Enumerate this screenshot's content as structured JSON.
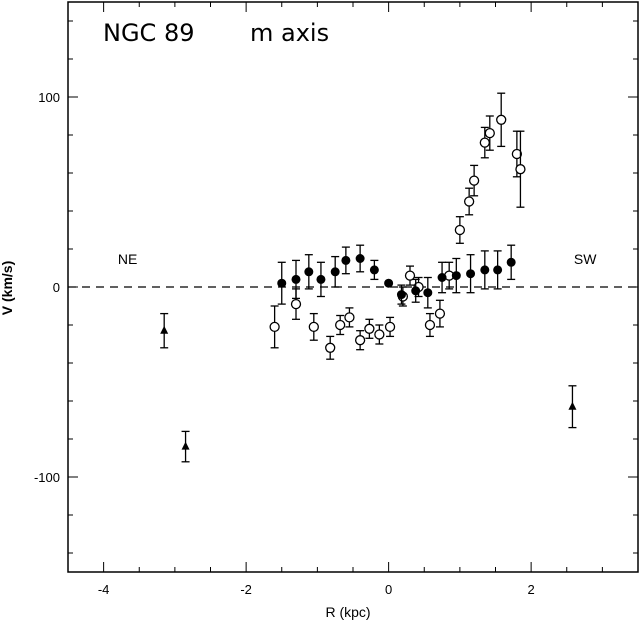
{
  "chart_data": {
    "type": "scatter",
    "title": "NGC 89",
    "subtitle": "m axis",
    "xlabel": "R (kpc)",
    "ylabel": "V (km/s)",
    "xlim": [
      -4.5,
      3.5
    ],
    "ylim": [
      -150,
      150
    ],
    "x_ticks": [
      -4,
      -2,
      0,
      2
    ],
    "y_ticks": [
      -100,
      0,
      100
    ],
    "x_tick_labels": [
      "-4",
      "-2",
      "0",
      "2"
    ],
    "y_tick_labels": [
      "-100",
      "0",
      "100"
    ],
    "reference_line": {
      "y": 0,
      "style": "dashed"
    },
    "annotations": [
      {
        "text": "NE",
        "x": -3.8,
        "y": 12
      },
      {
        "text": "SW",
        "x": 2.6,
        "y": 12
      }
    ],
    "series": [
      {
        "marker": "open-circle",
        "points": [
          {
            "x": -1.6,
            "y": -21,
            "err": 11
          },
          {
            "x": -1.3,
            "y": -9,
            "err": 8
          },
          {
            "x": -1.05,
            "y": -21,
            "err": 7
          },
          {
            "x": -0.82,
            "y": -32,
            "err": 6
          },
          {
            "x": -0.68,
            "y": -20,
            "err": 5
          },
          {
            "x": -0.55,
            "y": -16,
            "err": 5
          },
          {
            "x": -0.4,
            "y": -28,
            "err": 5
          },
          {
            "x": -0.27,
            "y": -22,
            "err": 5
          },
          {
            "x": -0.13,
            "y": -25,
            "err": 5
          },
          {
            "x": 0.02,
            "y": -21,
            "err": 5
          },
          {
            "x": 0.2,
            "y": -5,
            "err": 5
          },
          {
            "x": 0.3,
            "y": 6,
            "err": 5
          },
          {
            "x": 0.42,
            "y": 0,
            "err": 5
          },
          {
            "x": 0.58,
            "y": -20,
            "err": 6
          },
          {
            "x": 0.72,
            "y": -14,
            "err": 7
          },
          {
            "x": 0.85,
            "y": 6,
            "err": 7
          },
          {
            "x": 1.0,
            "y": 30,
            "err": 7
          },
          {
            "x": 1.13,
            "y": 45,
            "err": 7
          },
          {
            "x": 1.2,
            "y": 56,
            "err": 8
          },
          {
            "x": 1.35,
            "y": 76,
            "err": 8
          },
          {
            "x": 1.42,
            "y": 81,
            "err": 9
          },
          {
            "x": 1.58,
            "y": 88,
            "err": 14
          },
          {
            "x": 1.8,
            "y": 70,
            "err": 12
          },
          {
            "x": 1.85,
            "y": 62,
            "err": 20
          }
        ]
      },
      {
        "marker": "filled-circle",
        "points": [
          {
            "x": -1.5,
            "y": 2,
            "err": 11
          },
          {
            "x": -1.3,
            "y": 4,
            "err": 10
          },
          {
            "x": -1.12,
            "y": 8,
            "err": 9
          },
          {
            "x": -0.95,
            "y": 4,
            "err": 9
          },
          {
            "x": -0.75,
            "y": 8,
            "err": 8
          },
          {
            "x": -0.6,
            "y": 14,
            "err": 7
          },
          {
            "x": -0.4,
            "y": 15,
            "err": 7
          },
          {
            "x": -0.2,
            "y": 9,
            "err": 5
          },
          {
            "x": 0.0,
            "y": 2,
            "err": 0
          },
          {
            "x": 0.18,
            "y": -4,
            "err": 5
          },
          {
            "x": 0.38,
            "y": -2,
            "err": 6
          },
          {
            "x": 0.55,
            "y": -3,
            "err": 8
          },
          {
            "x": 0.75,
            "y": 5,
            "err": 8
          },
          {
            "x": 0.95,
            "y": 6,
            "err": 9
          },
          {
            "x": 1.15,
            "y": 7,
            "err": 10
          },
          {
            "x": 1.35,
            "y": 9,
            "err": 10
          },
          {
            "x": 1.53,
            "y": 9,
            "err": 10
          },
          {
            "x": 1.72,
            "y": 13,
            "err": 9
          }
        ]
      },
      {
        "marker": "filled-triangle",
        "points": [
          {
            "x": -3.15,
            "y": -23,
            "err": 9
          },
          {
            "x": -2.85,
            "y": -84,
            "err": 8
          },
          {
            "x": 2.58,
            "y": -63,
            "err": 11
          }
        ]
      }
    ]
  }
}
